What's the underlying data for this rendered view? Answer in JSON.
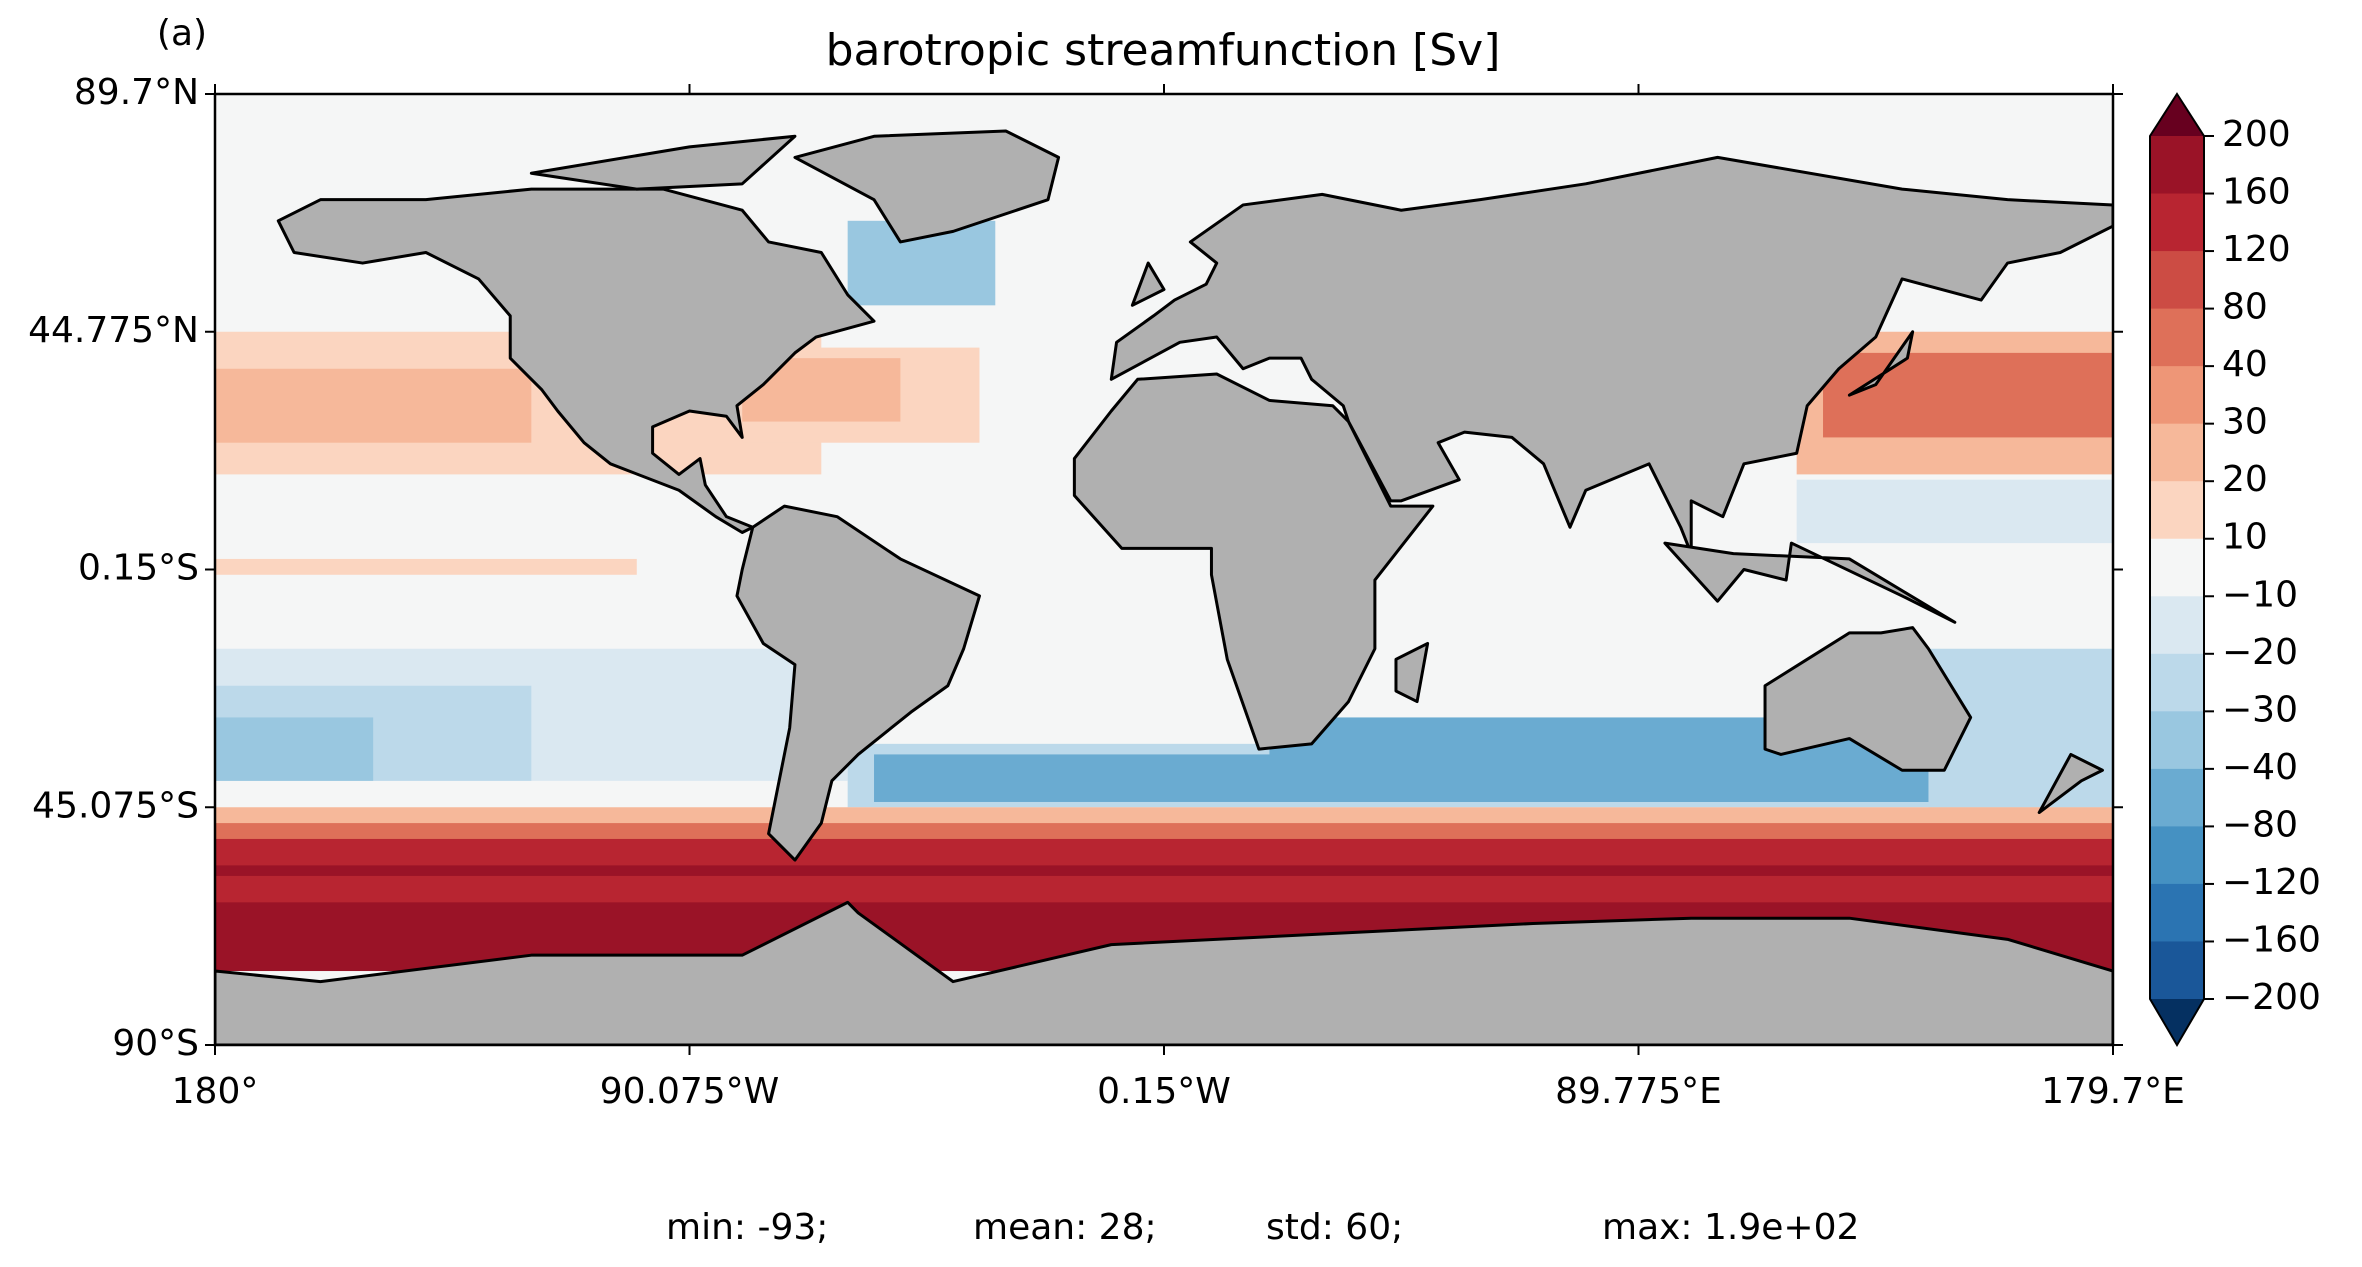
{
  "panel_label": "(a)",
  "title": "barotropic streamfunction [Sv]",
  "lat_labels": [
    "89.7°N",
    "44.775°N",
    "0.15°S",
    "45.075°S",
    "90°S"
  ],
  "lon_labels": [
    "180°",
    "90.075°W",
    "0.15°W",
    "89.775°E",
    "179.7°E"
  ],
  "colorbar": {
    "levels": [
      200,
      160,
      120,
      80,
      40,
      30,
      20,
      10,
      {
        "value": -10,
        "label": "−10"
      },
      {
        "value": -20,
        "label": "−20"
      },
      {
        "value": -30,
        "label": "−30"
      },
      {
        "value": -40,
        "label": "−40"
      },
      {
        "value": -80,
        "label": "−80"
      },
      {
        "value": -120,
        "label": "−120"
      },
      {
        "value": -160,
        "label": "−160"
      },
      {
        "value": -200,
        "label": "−200"
      }
    ],
    "colors": [
      "#9a1327",
      "#b82531",
      "#cc4c44",
      "#de7059",
      "#ee9677",
      "#f6b89a",
      "#fbd5c0",
      "#f5f6f6",
      "#dae8f1",
      "#bcd9ea",
      "#99c7e0",
      "#6aabd1",
      "#4591c2",
      "#2b74b2",
      "#1a5799"
    ],
    "over_color": "#67001f",
    "under_color": "#053061"
  },
  "stats": [
    "min: -93;",
    "mean: 28;",
    "std: 60;",
    "max: 1.9e+02"
  ]
}
